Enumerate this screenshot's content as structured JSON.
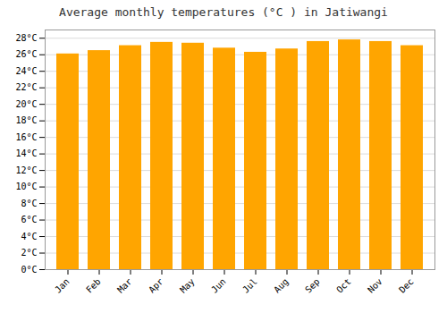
{
  "chart_data": {
    "type": "bar",
    "title": "Average monthly temperatures (°C ) in Jatiwangi",
    "categories": [
      "Jan",
      "Feb",
      "Mar",
      "Apr",
      "May",
      "Jun",
      "Jul",
      "Aug",
      "Sep",
      "Oct",
      "Nov",
      "Dec"
    ],
    "values": [
      26.1,
      26.5,
      27.1,
      27.5,
      27.4,
      26.8,
      26.3,
      26.7,
      27.6,
      27.8,
      27.6,
      27.1
    ],
    "color": "#FFA500",
    "ylim": [
      0,
      29
    ],
    "yticks": [
      {
        "value": 0,
        "label": "0°C"
      },
      {
        "value": 2,
        "label": "2°C"
      },
      {
        "value": 4,
        "label": "4°C"
      },
      {
        "value": 6,
        "label": "6°C"
      },
      {
        "value": 8,
        "label": "8°C"
      },
      {
        "value": 10,
        "label": "10°C"
      },
      {
        "value": 12,
        "label": "12°C"
      },
      {
        "value": 14,
        "label": "14°C"
      },
      {
        "value": 16,
        "label": "16°C"
      },
      {
        "value": 18,
        "label": "18°C"
      },
      {
        "value": 20,
        "label": "20°C"
      },
      {
        "value": 22,
        "label": "22°C"
      },
      {
        "value": 24,
        "label": "24°C"
      },
      {
        "value": 26,
        "label": "26°C"
      },
      {
        "value": 28,
        "label": "28°C"
      }
    ],
    "grid": true
  }
}
